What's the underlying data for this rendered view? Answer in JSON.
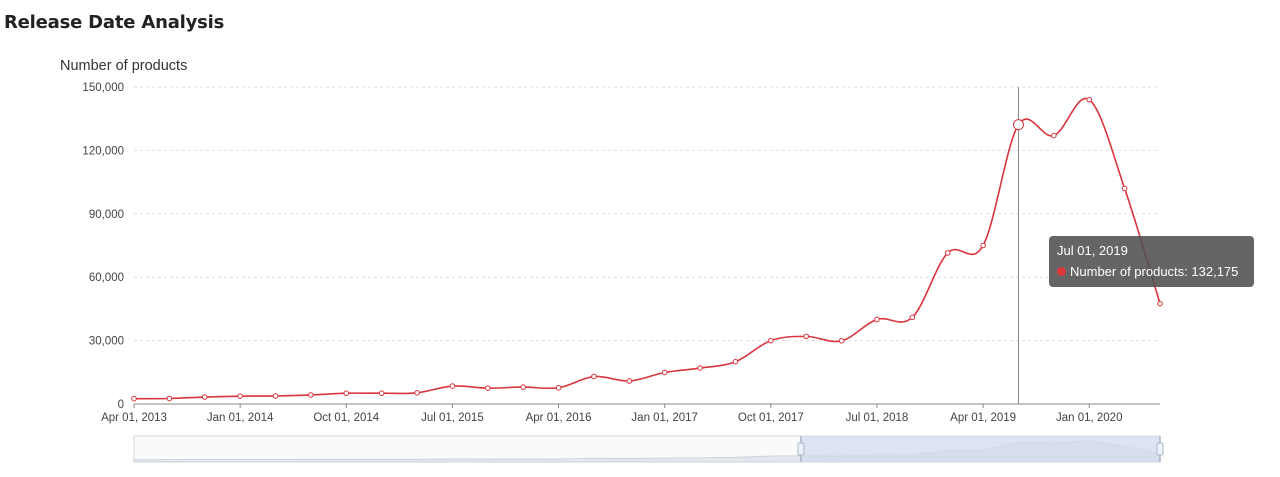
{
  "page": {
    "title": "Release Date Analysis"
  },
  "colors": {
    "series": "#d9363e",
    "grid": "#dddddd",
    "axis": "#666666",
    "zoom_fill": "#d2dbee",
    "zoom_handle": "#a7b7cc"
  },
  "tooltip": {
    "date": "Jul 01, 2019",
    "series_label": "Number of products: 132,175"
  },
  "chart_data": {
    "type": "line",
    "smooth": true,
    "ylabel": "Number of products",
    "ylim": [
      0,
      150000
    ],
    "yticks": [
      "0",
      "30,000",
      "60,000",
      "90,000",
      "120,000",
      "150,000"
    ],
    "xticks": [
      "Apr 01, 2013",
      "Jan 01, 2014",
      "Oct 01, 2014",
      "Jul 01, 2015",
      "Apr 01, 2016",
      "Jan 01, 2017",
      "Oct 01, 2017",
      "Jul 01, 2018",
      "Apr 01, 2019",
      "Jan 01, 2020"
    ],
    "grid": true,
    "x": [
      "2013-04-01",
      "2013-07-01",
      "2013-10-01",
      "2014-01-01",
      "2014-04-01",
      "2014-07-01",
      "2014-10-01",
      "2015-01-01",
      "2015-04-01",
      "2015-07-01",
      "2015-10-01",
      "2016-01-01",
      "2016-04-01",
      "2016-07-01",
      "2016-10-01",
      "2017-01-01",
      "2017-04-01",
      "2017-07-01",
      "2017-10-01",
      "2018-01-01",
      "2018-04-01",
      "2018-07-01",
      "2018-10-01",
      "2019-01-01",
      "2019-04-01",
      "2019-07-01",
      "2019-10-01",
      "2020-01-01",
      "2020-04-01",
      "2020-07-01"
    ],
    "series": [
      {
        "values": [
          2500,
          2600,
          3300,
          3700,
          3800,
          4300,
          5100,
          5100,
          5300,
          8500,
          7500,
          8000,
          7700,
          13000,
          10900,
          14900,
          17000,
          20000,
          30000,
          32000,
          29900,
          40000,
          41000,
          71500,
          75000,
          132175,
          127000,
          144000,
          102000,
          47500
        ]
      }
    ],
    "highlight_index": 25,
    "zoom_range_pct": [
      65,
      100
    ]
  }
}
